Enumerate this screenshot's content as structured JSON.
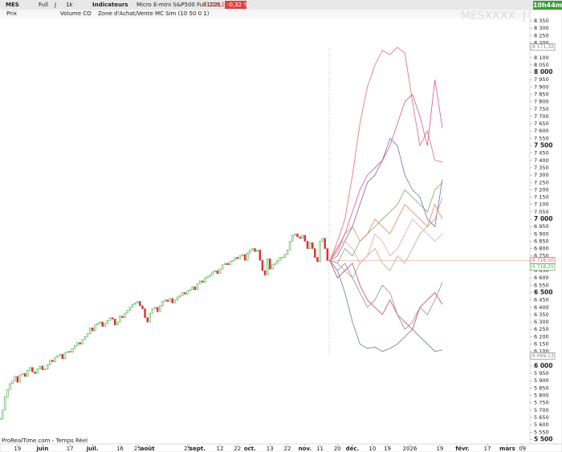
{
  "toolbar": {
    "symbol": "MES",
    "mode": "Full",
    "period": "J",
    "units": "1k",
    "indicators": "Indicateurs",
    "instrument": "Micro E-mini S&P500 Full1225",
    "price": "6 718,25",
    "change": "-0,32 %",
    "countdown": "10h44m"
  },
  "legend": {
    "items": [
      "Prix",
      "Volume CO",
      "Zone d'Achat/Vente",
      "MC Sim (10 50 0 1)"
    ]
  },
  "watermark": "MESXXXX. J",
  "footer": "ProRealTime.com - Temps Réel",
  "chart_data": {
    "type": "candlestick",
    "xlim": [
      0,
      212
    ],
    "xticks": [
      {
        "value": 7,
        "label": "19"
      },
      {
        "value": 17,
        "label": "juin"
      },
      {
        "value": 28,
        "label": "17"
      },
      {
        "value": 37,
        "label": "juil."
      },
      {
        "value": 48,
        "label": "16"
      },
      {
        "value": 55,
        "label": "25"
      },
      {
        "value": 59,
        "label": "août"
      },
      {
        "value": 75,
        "label": "25"
      },
      {
        "value": 79,
        "label": "sept."
      },
      {
        "value": 88,
        "label": "12"
      },
      {
        "value": 95,
        "label": "22"
      },
      {
        "value": 100,
        "label": "oct."
      },
      {
        "value": 108,
        "label": "13"
      },
      {
        "value": 115,
        "label": "22"
      },
      {
        "value": 122,
        "label": "nov."
      },
      {
        "value": 128,
        "label": "11"
      },
      {
        "value": 135,
        "label": "20"
      },
      {
        "value": 141,
        "label": "déc."
      },
      {
        "value": 149,
        "label": "10"
      },
      {
        "value": 155,
        "label": "19"
      },
      {
        "value": 164,
        "label": "2026"
      },
      {
        "value": 176,
        "label": "19"
      },
      {
        "value": 185,
        "label": "févr."
      },
      {
        "value": 195,
        "label": "17"
      },
      {
        "value": 203,
        "label": "mars"
      },
      {
        "value": 209,
        "label": "09"
      }
    ],
    "ylim": [
      5475,
      8372
    ],
    "yticks": [
      {
        "value": 8350,
        "label": "8 350"
      },
      {
        "value": 8300,
        "label": "8 300"
      },
      {
        "value": 8250,
        "label": "8 250"
      },
      {
        "value": 8200,
        "label": "8 200"
      },
      {
        "value": 8100,
        "label": "8 100"
      },
      {
        "value": 8050,
        "label": "8 050"
      },
      {
        "value": 8000,
        "label": "8 000"
      },
      {
        "value": 7950,
        "label": "7 950"
      },
      {
        "value": 7900,
        "label": "7 900"
      },
      {
        "value": 7850,
        "label": "7 850"
      },
      {
        "value": 7800,
        "label": "7 800"
      },
      {
        "value": 7750,
        "label": "7 750"
      },
      {
        "value": 7700,
        "label": "7 700"
      },
      {
        "value": 7650,
        "label": "7 650"
      },
      {
        "value": 7600,
        "label": "7 600"
      },
      {
        "value": 7550,
        "label": "7 550"
      },
      {
        "value": 7500,
        "label": "7 500"
      },
      {
        "value": 7450,
        "label": "7 450"
      },
      {
        "value": 7400,
        "label": "7 400"
      },
      {
        "value": 7350,
        "label": "7 350"
      },
      {
        "value": 7300,
        "label": "7 300"
      },
      {
        "value": 7250,
        "label": "7 250"
      },
      {
        "value": 7200,
        "label": "7 200"
      },
      {
        "value": 7150,
        "label": "7 150"
      },
      {
        "value": 7100,
        "label": "7 100"
      },
      {
        "value": 7050,
        "label": "7 050"
      },
      {
        "value": 7000,
        "label": "7 000"
      },
      {
        "value": 6950,
        "label": "6 950"
      },
      {
        "value": 6900,
        "label": "6 900"
      },
      {
        "value": 6850,
        "label": "6 850"
      },
      {
        "value": 6800,
        "label": "6 800"
      },
      {
        "value": 6750,
        "label": "6 750"
      },
      {
        "value": 6650,
        "label": "6 650"
      },
      {
        "value": 6600,
        "label": "6 600"
      },
      {
        "value": 6550,
        "label": "6 550"
      },
      {
        "value": 6500,
        "label": "6 500"
      },
      {
        "value": 6450,
        "label": "6 450"
      },
      {
        "value": 6400,
        "label": "6 400"
      },
      {
        "value": 6350,
        "label": "6 350"
      },
      {
        "value": 6300,
        "label": "6 300"
      },
      {
        "value": 6250,
        "label": "6 250"
      },
      {
        "value": 6200,
        "label": "6 200"
      },
      {
        "value": 6150,
        "label": "6 150"
      },
      {
        "value": 6100,
        "label": "6 100"
      },
      {
        "value": 6000,
        "label": "6 000"
      },
      {
        "value": 5950,
        "label": "5 950"
      },
      {
        "value": 5900,
        "label": "5 900"
      },
      {
        "value": 5850,
        "label": "5 850"
      },
      {
        "value": 5800,
        "label": "5 800"
      },
      {
        "value": 5750,
        "label": "5 750"
      },
      {
        "value": 5700,
        "label": "5 700"
      },
      {
        "value": 5650,
        "label": "5 650"
      },
      {
        "value": 5600,
        "label": "5 600"
      },
      {
        "value": 5550,
        "label": "5 550"
      },
      {
        "value": 5500,
        "label": "5 500"
      }
    ],
    "markers": [
      {
        "value": 8171.32,
        "label": "8 171,32",
        "color": "#888888"
      },
      {
        "value": 6718.5,
        "label": "6 718,50",
        "color": "#e06060"
      },
      {
        "value": 6718.25,
        "label": "6 718,25",
        "color": "#50b050"
      },
      {
        "value": 6069.13,
        "label": "6 069,13",
        "color": "#888888"
      }
    ],
    "up_color": "#3aaa3a",
    "down_color": "#e03030",
    "close": [
      5640,
      5700,
      5790,
      5840,
      5880,
      5900,
      5930,
      5890,
      5940,
      5950,
      5930,
      5970,
      5990,
      5960,
      5950,
      5980,
      6000,
      5975,
      5980,
      6010,
      6040,
      6030,
      6060,
      6070,
      6080,
      6050,
      6090,
      6100,
      6095,
      6120,
      6140,
      6160,
      6150,
      6180,
      6200,
      6220,
      6260,
      6240,
      6280,
      6290,
      6300,
      6270,
      6290,
      6310,
      6330,
      6320,
      6280,
      6300,
      6340,
      6330,
      6360,
      6380,
      6400,
      6420,
      6430,
      6440,
      6410,
      6390,
      6330,
      6300,
      6360,
      6390,
      6400,
      6370,
      6410,
      6440,
      6450,
      6440,
      6460,
      6430,
      6450,
      6470,
      6480,
      6500,
      6490,
      6510,
      6520,
      6540,
      6520,
      6560,
      6580,
      6570,
      6600,
      6610,
      6620,
      6640,
      6650,
      6630,
      6660,
      6690,
      6700,
      6690,
      6710,
      6720,
      6740,
      6730,
      6750,
      6760,
      6720,
      6770,
      6790,
      6800,
      6780,
      6790,
      6720,
      6650,
      6620,
      6730,
      6660,
      6690,
      6700,
      6720,
      6740,
      6740,
      6760,
      6790,
      6850,
      6890,
      6900,
      6880,
      6870,
      6890,
      6850,
      6800,
      6840,
      6800,
      6740,
      6710,
      6850,
      6870,
      6800,
      6720,
      6718.25
    ],
    "sim_x": [
      132,
      135,
      138,
      141,
      144,
      147,
      150,
      153,
      156,
      159,
      162,
      165,
      168,
      171,
      174,
      177
    ],
    "series": [
      {
        "color": "#e06070",
        "values": [
          6718,
          6850,
          7000,
          7300,
          7650,
          7900,
          8050,
          8150,
          8120,
          8171,
          8130,
          7800,
          7500,
          7600,
          7400,
          7390
        ]
      },
      {
        "color": "#d0507a",
        "values": [
          6718,
          6800,
          6900,
          7050,
          7200,
          7300,
          7350,
          7400,
          7500,
          7650,
          7800,
          7850,
          7700,
          7500,
          7950,
          7620
        ]
      },
      {
        "color": "#7060c0",
        "values": [
          6718,
          6750,
          6850,
          6950,
          7100,
          7250,
          7300,
          7400,
          7550,
          7500,
          7300,
          7200,
          7150,
          7000,
          6950,
          7270
        ]
      },
      {
        "color": "#80a060",
        "values": [
          6718,
          6700,
          6800,
          6750,
          6850,
          6900,
          6950,
          7000,
          7050,
          7100,
          7200,
          7150,
          7100,
          7050,
          7200,
          7250
        ]
      },
      {
        "color": "#e08050",
        "values": [
          6718,
          6780,
          6900,
          6950,
          6850,
          6900,
          7000,
          6950,
          6900,
          7000,
          7100,
          7050,
          7000,
          6950,
          7100,
          7000
        ]
      },
      {
        "color": "#6070a0",
        "values": [
          6718,
          6650,
          6500,
          6300,
          6150,
          6120,
          6130,
          6100,
          6120,
          6150,
          6200,
          6250,
          6200,
          6150,
          6100,
          6110
        ]
      },
      {
        "color": "#c04050",
        "values": [
          6718,
          6600,
          6650,
          6700,
          6550,
          6450,
          6400,
          6350,
          6450,
          6350,
          6300,
          6250,
          6400,
          6450,
          6500,
          6420
        ]
      },
      {
        "color": "#9080b0",
        "values": [
          6718,
          6650,
          6700,
          6600,
          6500,
          6400,
          6450,
          6550,
          6500,
          6350,
          6250,
          6300,
          6400,
          6350,
          6450,
          6570
        ]
      },
      {
        "color": "#c0a070",
        "values": [
          6718,
          6700,
          6650,
          6600,
          6700,
          6750,
          6800,
          6700,
          6650,
          6750,
          6700,
          6800,
          6900,
          6950,
          7000,
          7150
        ]
      },
      {
        "color": "#e0a0b0",
        "values": [
          6718,
          6820,
          6850,
          6800,
          6700,
          6750,
          6900,
          6850,
          6750,
          6800,
          6900,
          7000,
          6950,
          6900,
          6850,
          6900
        ]
      }
    ]
  }
}
